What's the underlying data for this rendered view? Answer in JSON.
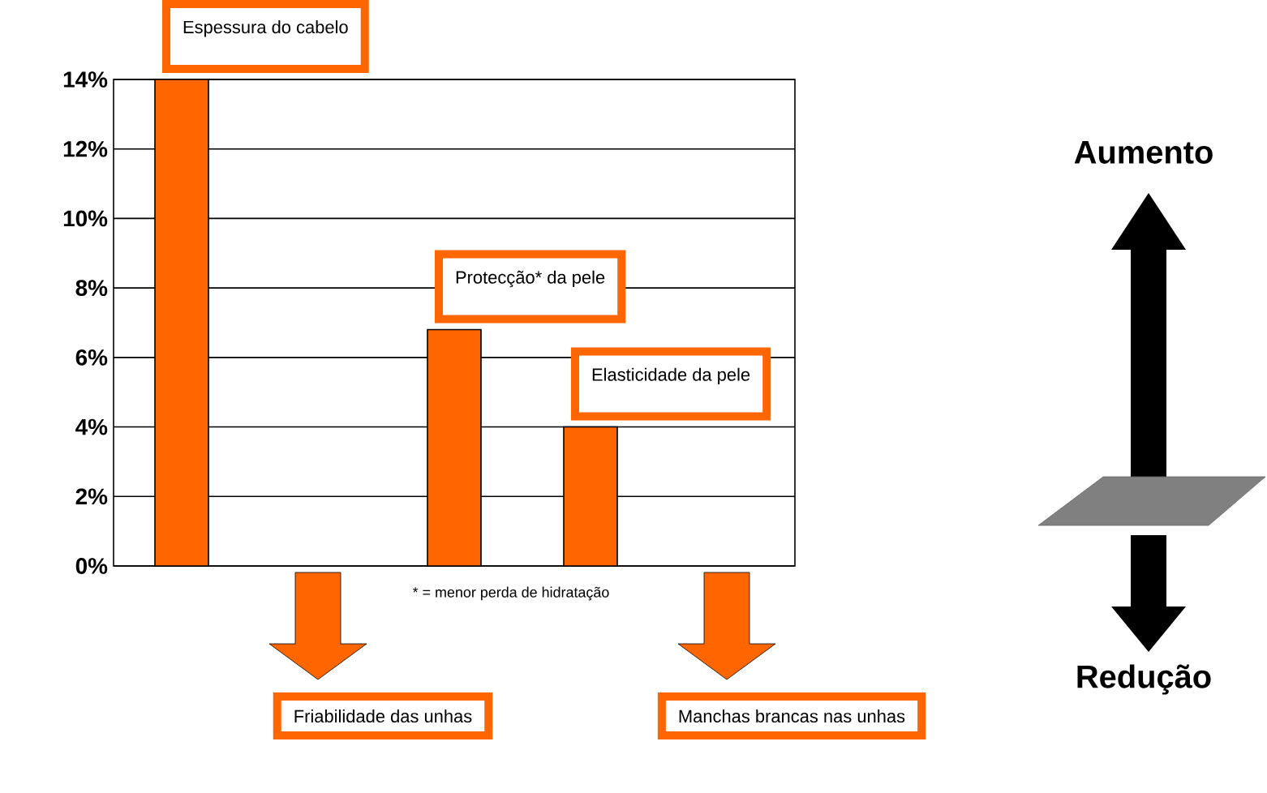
{
  "chart_data": {
    "type": "bar",
    "categories": [
      null,
      null,
      null,
      null,
      null
    ],
    "values": [
      14,
      null,
      6.8,
      4,
      null
    ],
    "color": "#ff6600",
    "ylim": [
      0,
      14
    ],
    "yticks": [
      {
        "value": 0,
        "label": "0%"
      },
      {
        "value": 2,
        "label": "2%"
      },
      {
        "value": 4,
        "label": "4%"
      },
      {
        "value": 6,
        "label": "6%"
      },
      {
        "value": 8,
        "label": "8%"
      },
      {
        "value": 10,
        "label": "10%"
      },
      {
        "value": 12,
        "label": "12%"
      },
      {
        "value": 14,
        "label": "14%"
      }
    ],
    "grid": "y",
    "annotations": [
      "Espessura do cabelo",
      "Friabilidade das unhas",
      "Protecção* da pele",
      "Elasticidade da pele",
      "Manchas brancas nas unhas",
      "Aumento",
      "Redução",
      "* = menor perda de hidratação"
    ]
  }
}
